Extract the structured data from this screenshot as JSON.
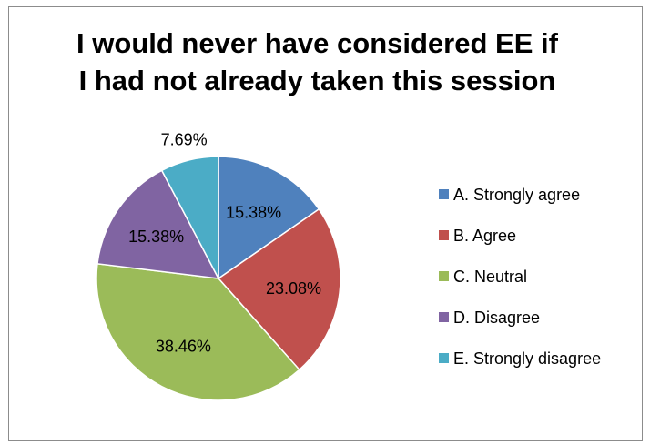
{
  "chart_data": {
    "type": "pie",
    "title_lines": [
      "I would never have considered EE if",
      "I had not already taken this session"
    ],
    "categories": [
      "A. Strongly agree",
      "B. Agree",
      "C. Neutral",
      "D. Disagree",
      "E. Strongly disagree"
    ],
    "values": [
      15.38,
      23.08,
      38.46,
      15.38,
      7.69
    ],
    "data_labels": [
      "15.38%",
      "23.08%",
      "38.46%",
      "15.38%",
      "7.69%"
    ],
    "colors": [
      "#4f81bd",
      "#c0504d",
      "#9bbb59",
      "#8064a2",
      "#4bacc6"
    ],
    "legend_position": "right"
  }
}
